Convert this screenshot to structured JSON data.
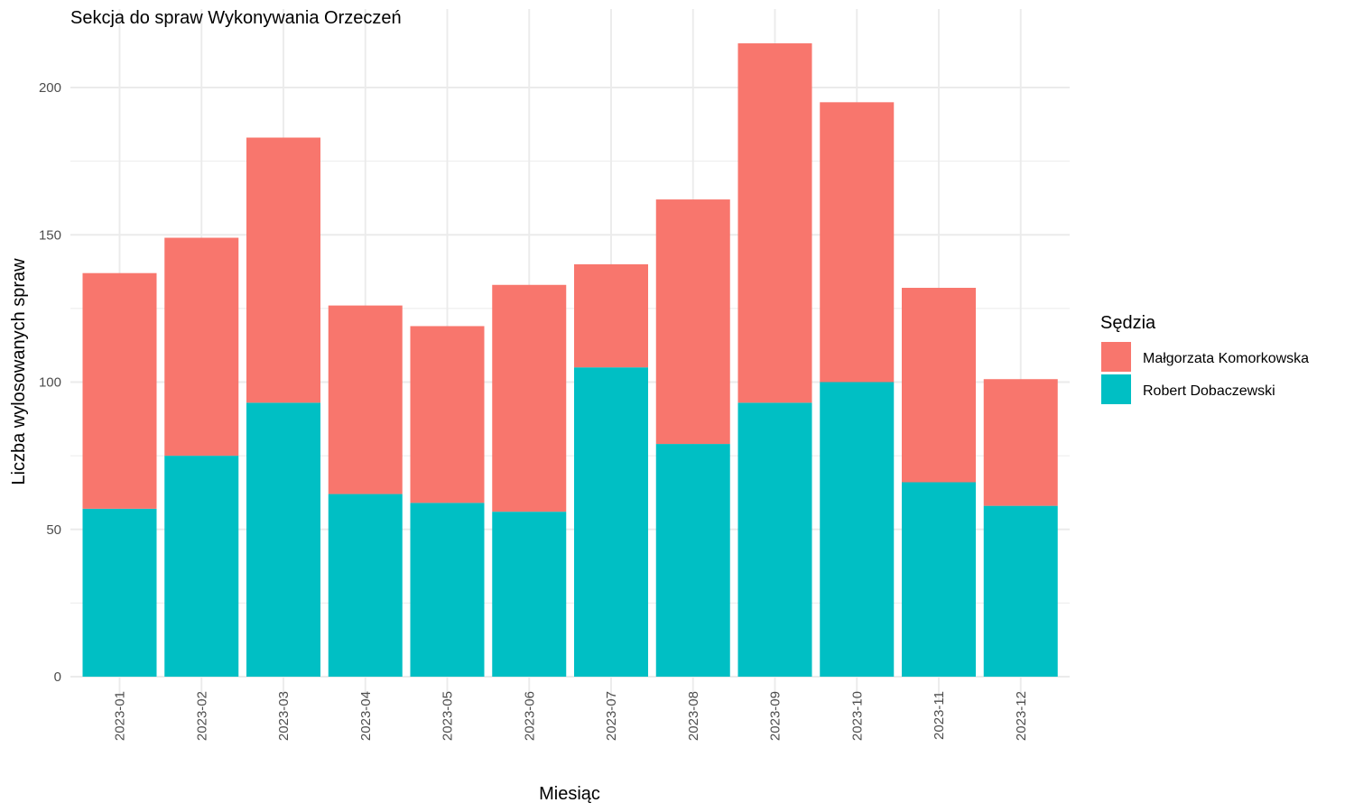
{
  "chart_data": {
    "type": "bar",
    "stacked": true,
    "title": "Sekcja do spraw Wykonywania Orzeczeń",
    "xlabel": "Miesiąc",
    "ylabel": "Liczba wylosowanych spraw",
    "categories": [
      "2023-01",
      "2023-02",
      "2023-03",
      "2023-04",
      "2023-05",
      "2023-06",
      "2023-07",
      "2023-08",
      "2023-09",
      "2023-10",
      "2023-11",
      "2023-12"
    ],
    "series": [
      {
        "name": "Robert Dobaczewski",
        "color": "#00bfc4",
        "values": [
          57,
          75,
          93,
          62,
          59,
          56,
          105,
          79,
          93,
          100,
          66,
          58
        ]
      },
      {
        "name": "Małgorzata Komorkowska",
        "color": "#f8766d",
        "values": [
          80,
          74,
          90,
          64,
          60,
          77,
          35,
          83,
          122,
          95,
          66,
          43
        ]
      }
    ],
    "ylim": [
      0,
      225
    ],
    "yticks": [
      0,
      50,
      100,
      150,
      200
    ],
    "grid": true,
    "legend": {
      "title": "Sędzia",
      "position": "right",
      "items": [
        "Małgorzata Komorkowska",
        "Robert Dobaczewski"
      ]
    }
  }
}
